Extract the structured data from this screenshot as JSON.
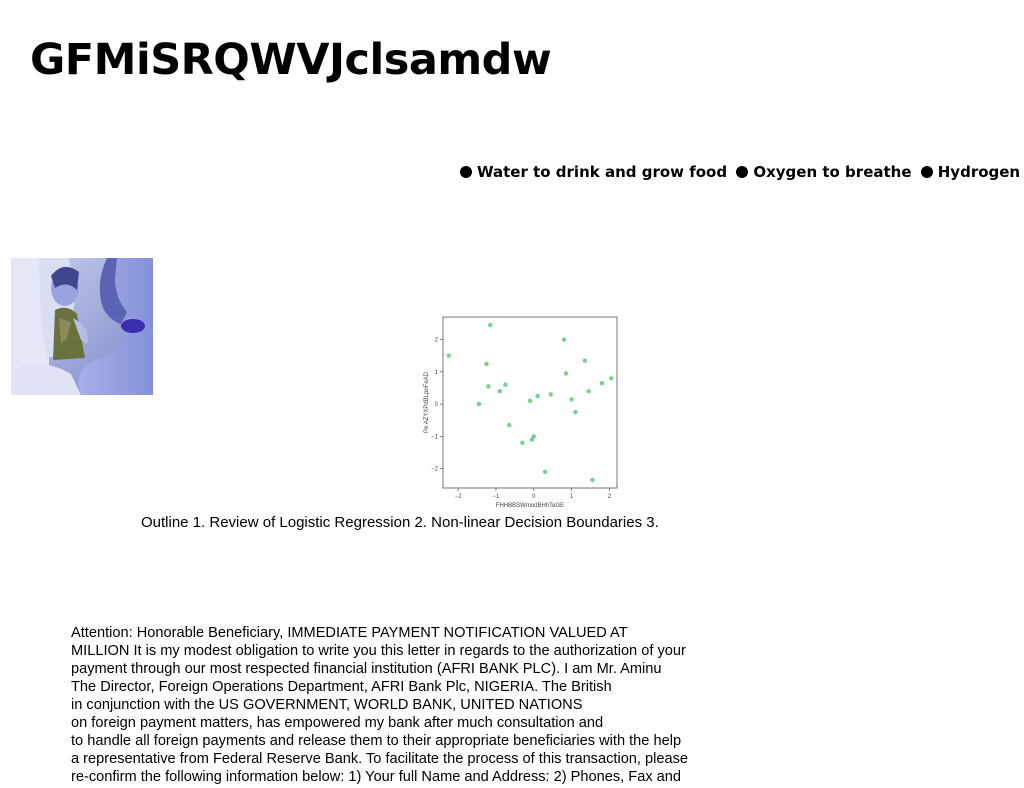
{
  "title": "GFMiSRQWVJclsamdw",
  "bullets": [
    "Water to drink and grow food",
    "Oxygen to breathe",
    "Hydrogen &"
  ],
  "photo": {
    "icon": "person-portrait-photo"
  },
  "caption": "Outline 1. Review of Logistic Regression 2. Non-linear Decision Boundaries 3.",
  "letter_lines": [
    "Attention: Honorable Beneficiary, IMMEDIATE PAYMENT NOTIFICATION VALUED AT",
    "MILLION It is my modest obligation to write you this letter in regards to the authorization of your",
    "payment through our most respected financial institution (AFRI BANK PLC). I am Mr. Aminu",
    "The Director, Foreign Operations Department, AFRI Bank Plc, NIGERIA. The British",
    "in conjunction with the US GOVERNMENT, WORLD BANK, UNITED NATIONS",
    "on foreign payment matters, has empowered my bank after much consultation and",
    "to handle all foreign payments and release them to their appropriate beneficiaries with the help",
    "a representative from Federal Reserve Bank. To facilitate the process of this transaction, please",
    "re-confirm the following information below: 1) Your full Name and Address: 2) Phones, Fax and"
  ],
  "chart_data": {
    "type": "scatter",
    "xlabel": "FHHBBSWmodBHhTeGE",
    "ylabel": "Pe AZYXPdBLpnFeAD",
    "xlim": [
      -2.4,
      2.2
    ],
    "ylim": [
      -2.6,
      2.7
    ],
    "xticks": [
      -2,
      -1,
      0,
      1,
      2
    ],
    "yticks": [
      -2,
      -1,
      0,
      1,
      2
    ],
    "color": "#77d08b",
    "points": [
      {
        "x": -2.25,
        "y": 1.5
      },
      {
        "x": -1.15,
        "y": 2.45
      },
      {
        "x": -1.45,
        "y": 0.0
      },
      {
        "x": -1.25,
        "y": 1.25
      },
      {
        "x": -1.2,
        "y": 0.55
      },
      {
        "x": -0.9,
        "y": 0.4
      },
      {
        "x": -0.75,
        "y": 0.6
      },
      {
        "x": -0.65,
        "y": -0.65
      },
      {
        "x": -0.3,
        "y": -1.2
      },
      {
        "x": -0.1,
        "y": 0.1
      },
      {
        "x": -0.05,
        "y": -1.1
      },
      {
        "x": 0.0,
        "y": -1.0
      },
      {
        "x": 0.1,
        "y": 0.25
      },
      {
        "x": 0.3,
        "y": -2.1
      },
      {
        "x": 0.45,
        "y": 0.3
      },
      {
        "x": 0.8,
        "y": 2.0
      },
      {
        "x": 0.85,
        "y": 0.95
      },
      {
        "x": 1.0,
        "y": 0.15
      },
      {
        "x": 1.1,
        "y": -0.25
      },
      {
        "x": 1.35,
        "y": 1.35
      },
      {
        "x": 1.45,
        "y": 0.4
      },
      {
        "x": 1.55,
        "y": -2.35
      },
      {
        "x": 1.8,
        "y": 0.65
      },
      {
        "x": 2.05,
        "y": 0.8
      }
    ]
  }
}
